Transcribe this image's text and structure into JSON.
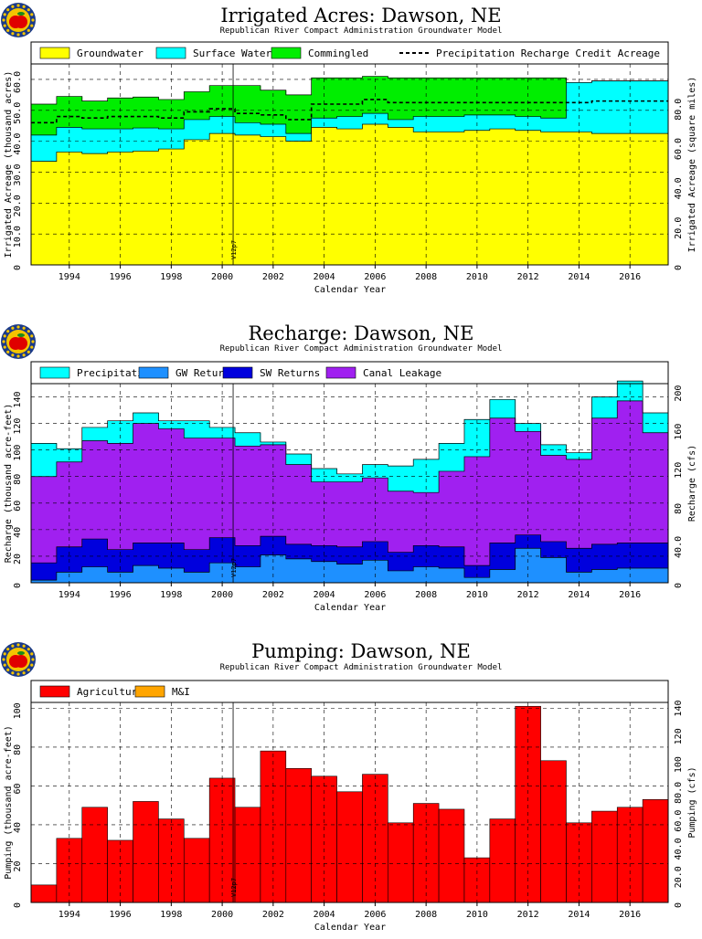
{
  "logo_colors": {
    "ring": "#1a3a8a",
    "dots": "#f4c400",
    "apple": "#e00000",
    "leaf": "#1a8a1a"
  },
  "vline_label": "V12p7",
  "chart_data": [
    {
      "type": "area",
      "title": "Irrigated Acres: Dawson, NE",
      "subtitle": "Republican River Compact Administration Groundwater Model",
      "xlabel": "Calendar Year",
      "ylabel": "Irrigated Acreage (thousand acres)",
      "ylabel_right": "Irrigated Acreage (square miles)",
      "x": [
        1993,
        1994,
        1995,
        1996,
        1997,
        1998,
        1999,
        2000,
        2001,
        2002,
        2003,
        2004,
        2005,
        2006,
        2007,
        2008,
        2009,
        2010,
        2011,
        2012,
        2013,
        2014,
        2015,
        2016,
        2017
      ],
      "x_ticks": [
        "1994",
        "1996",
        "1998",
        "2000",
        "2002",
        "2004",
        "2006",
        "2008",
        "2010",
        "2012",
        "2014",
        "2016"
      ],
      "ylim": [
        0,
        65
      ],
      "y_ticks": [
        "0",
        "10.0",
        "20.0",
        "30.0",
        "40.0",
        "50.0",
        "60.0"
      ],
      "y_ticks_right": [
        "0",
        "20.0",
        "40.0",
        "60.0",
        "80.0"
      ],
      "legend": [
        "Groundwater",
        "Surface Water",
        "Commingled",
        "Precipitation Recharge Credit Acreage"
      ],
      "colors": [
        "#ffff00",
        "#00ffff",
        "#00ee00",
        "#000000"
      ],
      "series": [
        {
          "name": "Groundwater",
          "values": [
            33.5,
            36.5,
            36,
            36.5,
            36.8,
            37.5,
            40.5,
            42.5,
            42,
            41.5,
            40,
            44.5,
            44,
            45.5,
            44.5,
            43,
            43,
            43.5,
            44,
            43.5,
            43,
            43,
            42.5,
            42.5,
            42.5
          ]
        },
        {
          "name": "Surface Water",
          "values": [
            8.5,
            8,
            8,
            7.5,
            7.5,
            6.5,
            6.5,
            5.5,
            4,
            4,
            2.5,
            3,
            4,
            3.5,
            2.5,
            5,
            5,
            5,
            4.5,
            4.5,
            4.5,
            16,
            17,
            17,
            17
          ]
        },
        {
          "name": "Commingled",
          "values": [
            10,
            10,
            9,
            10,
            10,
            9.5,
            9,
            10,
            12,
            11,
            12.5,
            13,
            12.5,
            12,
            13.5,
            12.5,
            12.5,
            12,
            12,
            12.5,
            13,
            0,
            0,
            0,
            0
          ]
        },
        {
          "name": "Precipitation Recharge Credit Acreage",
          "values": [
            46,
            48,
            47.5,
            48,
            48,
            47.5,
            49.5,
            50.5,
            49,
            48.5,
            47,
            52,
            52,
            53.5,
            52.5,
            52.5,
            52.5,
            52.5,
            52.5,
            52.5,
            52.5,
            52.5,
            53,
            53,
            53
          ]
        }
      ]
    },
    {
      "type": "area",
      "title": "Recharge: Dawson, NE",
      "subtitle": "Republican River Compact Administration Groundwater Model",
      "xlabel": "Calendar Year",
      "ylabel": "Recharge (thousand acre-feet)",
      "ylabel_right": "Recharge (cfs)",
      "x": [
        1993,
        1994,
        1995,
        1996,
        1997,
        1998,
        1999,
        2000,
        2001,
        2002,
        2003,
        2004,
        2005,
        2006,
        2007,
        2008,
        2009,
        2010,
        2011,
        2012,
        2013,
        2014,
        2015,
        2016,
        2017
      ],
      "x_ticks": [
        "1994",
        "1996",
        "1998",
        "2000",
        "2002",
        "2004",
        "2006",
        "2008",
        "2010",
        "2012",
        "2014",
        "2016"
      ],
      "ylim": [
        0,
        150
      ],
      "y_ticks": [
        "0",
        "20",
        "40",
        "60",
        "80",
        "100",
        "120",
        "140"
      ],
      "y_ticks_right": [
        "0",
        "40.0",
        "80",
        "120",
        "160",
        "200"
      ],
      "legend": [
        "Precipitation",
        "GW Returns",
        "SW Returns",
        "Canal Leakage"
      ],
      "colors": [
        "#00ffff",
        "#1e90ff",
        "#0000dd",
        "#a020f0"
      ],
      "series": [
        {
          "name": "GW Returns",
          "values": [
            2,
            8,
            12,
            8,
            13,
            11,
            8,
            15,
            12,
            21,
            18,
            16,
            14,
            17,
            9,
            12,
            11,
            4,
            10,
            26,
            19,
            8,
            10,
            11,
            11
          ]
        },
        {
          "name": "SW Returns",
          "values": [
            13,
            19,
            21,
            17,
            17,
            19,
            17,
            19,
            16,
            14,
            11,
            12,
            13,
            14,
            14,
            16,
            16,
            9,
            20,
            10,
            12,
            18,
            19,
            19,
            19
          ]
        },
        {
          "name": "Canal Leakage",
          "values": [
            65,
            64,
            74,
            80,
            90,
            86,
            84,
            75,
            75,
            69,
            60,
            48,
            49,
            48,
            46,
            40,
            57,
            82,
            94,
            78,
            65,
            67,
            95,
            107,
            83
          ]
        },
        {
          "name": "Precipitation",
          "values": [
            25,
            10,
            10,
            17,
            8,
            6,
            13,
            8,
            10,
            2,
            8,
            10,
            6,
            10,
            19,
            25,
            21,
            28,
            14,
            6,
            8,
            5,
            16,
            15,
            15
          ]
        }
      ]
    },
    {
      "type": "bar",
      "title": "Pumping: Dawson, NE",
      "subtitle": "Republican River Compact Administration Groundwater Model",
      "xlabel": "Calendar Year",
      "ylabel": "Pumping (thousand acre-feet)",
      "ylabel_right": "Pumping (cfs)",
      "x": [
        1993,
        1994,
        1995,
        1996,
        1997,
        1998,
        1999,
        2000,
        2001,
        2002,
        2003,
        2004,
        2005,
        2006,
        2007,
        2008,
        2009,
        2010,
        2011,
        2012,
        2013,
        2014,
        2015,
        2016,
        2017
      ],
      "x_ticks": [
        "1994",
        "1996",
        "1998",
        "2000",
        "2002",
        "2004",
        "2006",
        "2008",
        "2010",
        "2012",
        "2014",
        "2016"
      ],
      "ylim": [
        0,
        103
      ],
      "y_ticks": [
        "0",
        "20",
        "40",
        "60",
        "80",
        "100"
      ],
      "y_ticks_right": [
        "0",
        "20.0",
        "40.0",
        "60.0",
        "80.0",
        "100",
        "120",
        "140"
      ],
      "legend": [
        "Agricultural",
        "M&I"
      ],
      "colors": [
        "#ff0000",
        "#ffa500"
      ],
      "series": [
        {
          "name": "Agricultural",
          "values": [
            9,
            33,
            49,
            32,
            52,
            43,
            33,
            64,
            49,
            78,
            69,
            65,
            57,
            66,
            41,
            51,
            48,
            23,
            43,
            101,
            73,
            41,
            47,
            49,
            53
          ]
        },
        {
          "name": "M&I",
          "values": [
            0,
            0,
            0,
            0,
            0,
            0,
            0,
            0,
            0,
            0,
            0,
            0,
            0,
            0,
            0,
            0,
            0,
            0,
            0,
            0,
            0,
            0,
            0,
            0,
            0
          ]
        }
      ]
    }
  ]
}
